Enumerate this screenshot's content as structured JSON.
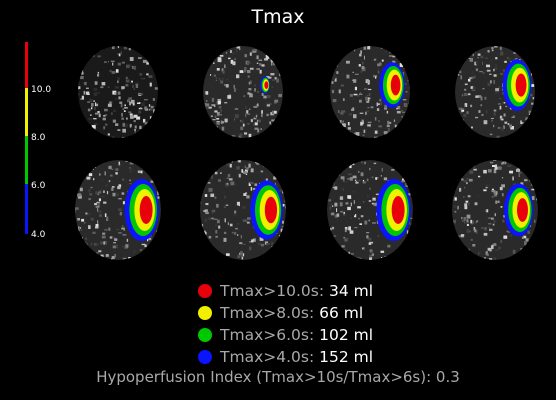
{
  "title": "Tmax",
  "scale": {
    "ticks": [
      "10.0",
      "8.0",
      "6.0",
      "4.0"
    ],
    "colors": {
      "red": "#e8000a",
      "yellow": "#f0f000",
      "green": "#00c800",
      "blue": "#0a14ff"
    }
  },
  "slices": [
    {
      "row": 0,
      "col": 0,
      "lesion": 0.0
    },
    {
      "row": 0,
      "col": 1,
      "lesion": 0.3
    },
    {
      "row": 0,
      "col": 2,
      "lesion": 0.8
    },
    {
      "row": 0,
      "col": 3,
      "lesion": 0.9
    },
    {
      "row": 1,
      "col": 0,
      "lesion": 1.0
    },
    {
      "row": 1,
      "col": 1,
      "lesion": 0.95
    },
    {
      "row": 1,
      "col": 2,
      "lesion": 1.0
    },
    {
      "row": 1,
      "col": 3,
      "lesion": 0.85
    }
  ],
  "legend": [
    {
      "label": "Tmax>10.0s:",
      "value": "34 ml",
      "color": "#e8000a"
    },
    {
      "label": "Tmax>8.0s:",
      "value": "66 ml",
      "color": "#f0f000"
    },
    {
      "label": "Tmax>6.0s:",
      "value": "102 ml",
      "color": "#00c800"
    },
    {
      "label": "Tmax>4.0s:",
      "value": "152 ml",
      "color": "#0a14ff"
    }
  ],
  "hypoperfusion_index": "Hypoperfusion Index (Tmax>10s/Tmax>6s): 0.3"
}
